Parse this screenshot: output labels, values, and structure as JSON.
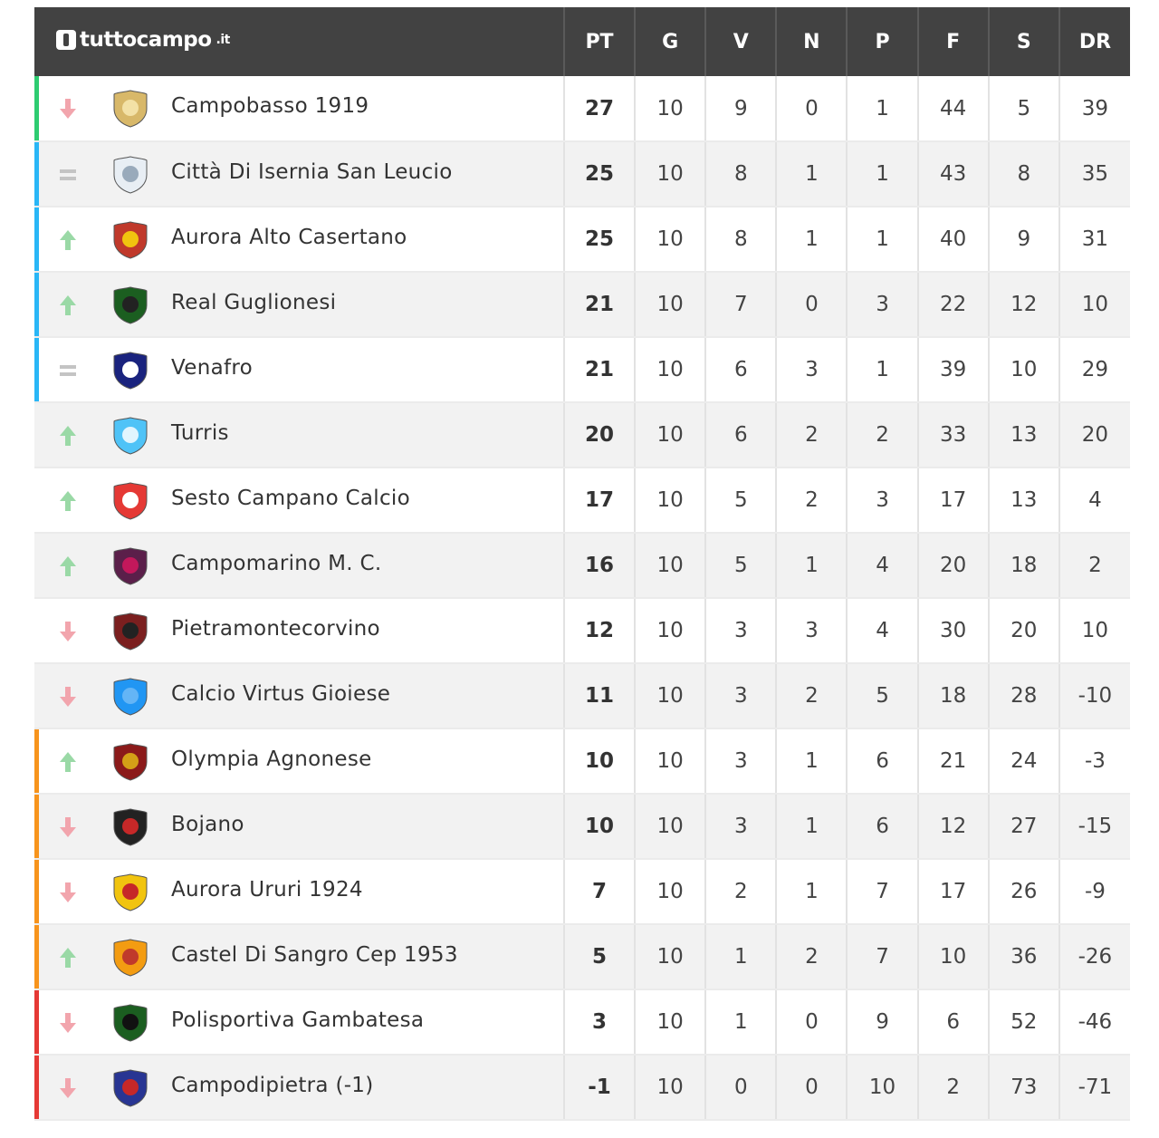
{
  "brand": {
    "name": "tuttocampo",
    "suffix": ".it"
  },
  "columns": [
    "PT",
    "G",
    "V",
    "N",
    "P",
    "F",
    "S",
    "DR"
  ],
  "colors": {
    "header_bg": "#424242",
    "zone_promotion": "#2ecc71",
    "zone_playoff": "#29b6f6",
    "zone_playout": "#f7941d",
    "zone_relegation": "#e53935",
    "trend_up": "#9ad9a6",
    "trend_down": "#f2a5ad",
    "trend_same": "#c4c4c4"
  },
  "rows": [
    {
      "team": "Campobasso 1919",
      "trend": "down",
      "zone": "promotion",
      "logo": "campobasso-crest",
      "stats": [
        "27",
        "10",
        "9",
        "0",
        "1",
        "44",
        "5",
        "39"
      ]
    },
    {
      "team": "Città Di Isernia San Leucio",
      "trend": "same",
      "zone": "playoff",
      "logo": "isernia-crest",
      "stats": [
        "25",
        "10",
        "8",
        "1",
        "1",
        "43",
        "8",
        "35"
      ]
    },
    {
      "team": "Aurora Alto Casertano",
      "trend": "up",
      "zone": "playoff",
      "logo": "aurora-alto-casertano-crest",
      "stats": [
        "25",
        "10",
        "8",
        "1",
        "1",
        "40",
        "9",
        "31"
      ]
    },
    {
      "team": "Real Guglionesi",
      "trend": "up",
      "zone": "playoff",
      "logo": "real-guglionesi-crest",
      "stats": [
        "21",
        "10",
        "7",
        "0",
        "3",
        "22",
        "12",
        "10"
      ]
    },
    {
      "team": "Venafro",
      "trend": "same",
      "zone": "playoff",
      "logo": "venafro-crest",
      "stats": [
        "21",
        "10",
        "6",
        "3",
        "1",
        "39",
        "10",
        "29"
      ]
    },
    {
      "team": "Turris",
      "trend": "up",
      "zone": "none",
      "logo": "turris-crest",
      "stats": [
        "20",
        "10",
        "6",
        "2",
        "2",
        "33",
        "13",
        "20"
      ]
    },
    {
      "team": "Sesto Campano Calcio",
      "trend": "up",
      "zone": "none",
      "logo": "sesto-campano-crest",
      "stats": [
        "17",
        "10",
        "5",
        "2",
        "3",
        "17",
        "13",
        "4"
      ]
    },
    {
      "team": "Campomarino M. C.",
      "trend": "up",
      "zone": "none",
      "logo": "campomarino-crest",
      "stats": [
        "16",
        "10",
        "5",
        "1",
        "4",
        "20",
        "18",
        "2"
      ]
    },
    {
      "team": "Pietramontecorvino",
      "trend": "down",
      "zone": "none",
      "logo": "pietramontecorvino-crest",
      "stats": [
        "12",
        "10",
        "3",
        "3",
        "4",
        "30",
        "20",
        "10"
      ]
    },
    {
      "team": "Calcio Virtus Gioiese",
      "trend": "down",
      "zone": "none",
      "logo": "virtus-gioiese-crest",
      "stats": [
        "11",
        "10",
        "3",
        "2",
        "5",
        "18",
        "28",
        "-10"
      ]
    },
    {
      "team": "Olympia Agnonese",
      "trend": "up",
      "zone": "playout",
      "logo": "olympia-agnonese-crest",
      "stats": [
        "10",
        "10",
        "3",
        "1",
        "6",
        "21",
        "24",
        "-3"
      ]
    },
    {
      "team": "Bojano",
      "trend": "down",
      "zone": "playout",
      "logo": "bojano-crest",
      "stats": [
        "10",
        "10",
        "3",
        "1",
        "6",
        "12",
        "27",
        "-15"
      ]
    },
    {
      "team": "Aurora Ururi 1924",
      "trend": "down",
      "zone": "playout",
      "logo": "aurora-ururi-crest",
      "stats": [
        "7",
        "10",
        "2",
        "1",
        "7",
        "17",
        "26",
        "-9"
      ]
    },
    {
      "team": "Castel Di Sangro Cep 1953",
      "trend": "up",
      "zone": "playout",
      "logo": "castel-di-sangro-crest",
      "stats": [
        "5",
        "10",
        "1",
        "2",
        "7",
        "10",
        "36",
        "-26"
      ]
    },
    {
      "team": "Polisportiva Gambatesa",
      "trend": "down",
      "zone": "relegation",
      "logo": "gambatesa-crest",
      "stats": [
        "3",
        "10",
        "1",
        "0",
        "9",
        "6",
        "52",
        "-46"
      ]
    },
    {
      "team": "Campodipietra (-1)",
      "trend": "down",
      "zone": "relegation",
      "logo": "campodipietra-crest",
      "stats": [
        "-1",
        "10",
        "0",
        "0",
        "10",
        "2",
        "73",
        "-71"
      ]
    }
  ]
}
